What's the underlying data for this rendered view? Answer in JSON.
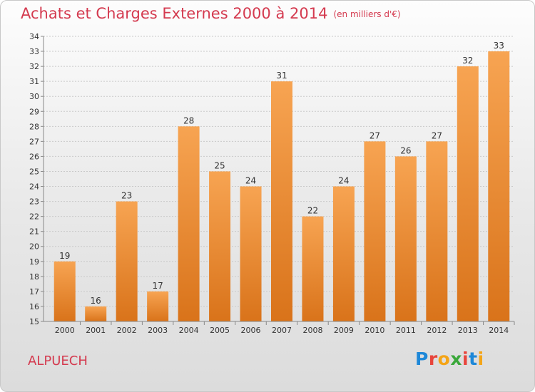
{
  "header": {
    "title": "Achats et Charges Externes 2000 à 2014",
    "subtitle": "(en milliers d'€)"
  },
  "footer": {
    "place": "ALPUECH",
    "logo": {
      "text": "Proxiti",
      "letters": [
        "P",
        "r",
        "o",
        "x",
        "i",
        "t",
        "i"
      ],
      "colors": [
        "#1e88d8",
        "#e8453c",
        "#f4a416",
        "#3aa83a",
        "#e8453c",
        "#1e88d8",
        "#f4a416"
      ]
    }
  },
  "colors": {
    "bar_top": "#f7a452",
    "bar_bottom": "#d9731a",
    "title": "#d43a4f",
    "grid": "#c9c9c9",
    "tick_text": "#333333"
  },
  "chart_data": {
    "type": "bar",
    "categories": [
      "2000",
      "2001",
      "2002",
      "2003",
      "2004",
      "2005",
      "2006",
      "2007",
      "2008",
      "2009",
      "2010",
      "2011",
      "2012",
      "2013",
      "2014"
    ],
    "values": [
      19,
      16,
      23,
      17,
      28,
      25,
      24,
      31,
      22,
      24,
      27,
      26,
      27,
      32,
      33
    ],
    "title": "Achats et Charges Externes 2000 à 2014",
    "subtitle": "(en milliers d'€)",
    "ylim": [
      15,
      34
    ],
    "yticks": [
      15,
      16,
      17,
      18,
      19,
      20,
      21,
      22,
      23,
      24,
      25,
      26,
      27,
      28,
      29,
      30,
      31,
      32,
      33,
      34
    ],
    "grid": true,
    "data_labels": true
  }
}
